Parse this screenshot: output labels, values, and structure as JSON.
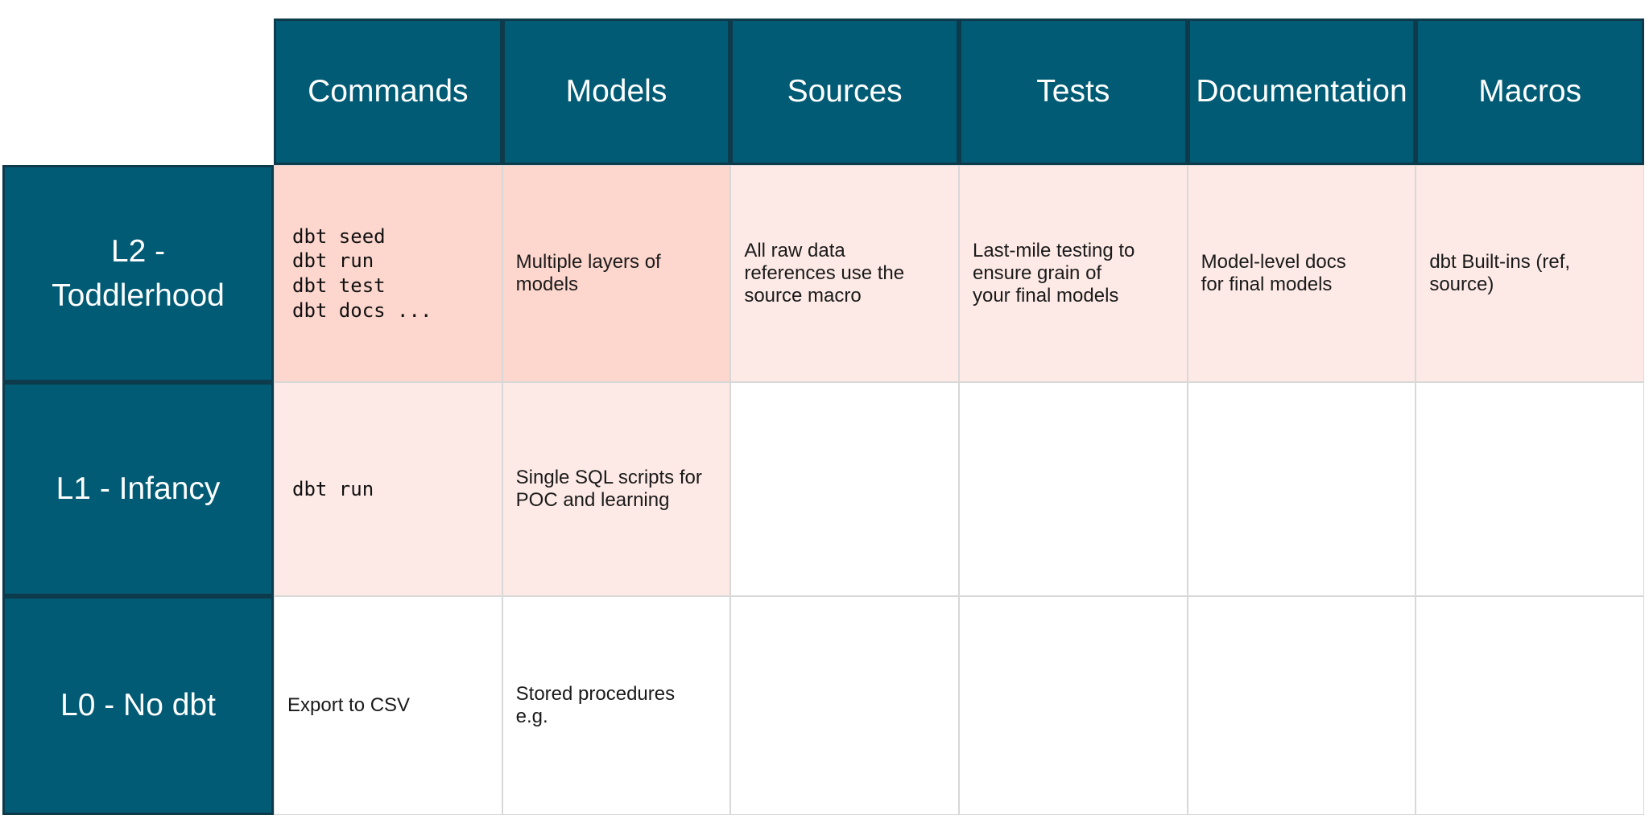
{
  "colors": {
    "teal": "#015B74",
    "navy": "#0D3B4B",
    "pinkdark": "#FDD6CD",
    "pinklight": "#FDEAE6",
    "grid": "#D8D8D8",
    "textdark": "#1A1A1A",
    "headertext": "#FFFFFF"
  },
  "table": {
    "columns": [
      "Commands",
      "Models",
      "Sources",
      "Tests",
      "Documentation",
      "Macros"
    ],
    "rows": [
      {
        "label": "L2 - Toddlerhood",
        "label_lines": [
          "L2 -",
          "Toddlerhood"
        ],
        "cells": [
          {
            "style": "mono",
            "highlight": "strong",
            "lines": [
              "dbt seed",
              "dbt run",
              "dbt test",
              "dbt docs ..."
            ]
          },
          {
            "style": "text",
            "highlight": "strong",
            "lines": [
              "Multiple layers of",
              "models"
            ]
          },
          {
            "style": "text",
            "highlight": "light",
            "lines": [
              "All raw data",
              "references use the",
              "source macro"
            ]
          },
          {
            "style": "text",
            "highlight": "light",
            "lines": [
              "Last-mile testing to",
              "ensure grain of",
              "your final models"
            ]
          },
          {
            "style": "text",
            "highlight": "light",
            "lines": [
              "Model-level docs",
              "for final models"
            ]
          },
          {
            "style": "text",
            "highlight": "light",
            "lines": [
              "dbt Built-ins (ref,",
              "source)"
            ]
          }
        ]
      },
      {
        "label": "L1 - Infancy",
        "label_lines": [
          "L1 - Infancy"
        ],
        "cells": [
          {
            "style": "mono",
            "highlight": "light",
            "lines": [
              "dbt run"
            ]
          },
          {
            "style": "text",
            "highlight": "light",
            "lines": [
              "Single SQL scripts for",
              "POC and learning"
            ]
          },
          {
            "style": "text",
            "highlight": "none",
            "lines": []
          },
          {
            "style": "text",
            "highlight": "none",
            "lines": []
          },
          {
            "style": "text",
            "highlight": "none",
            "lines": []
          },
          {
            "style": "text",
            "highlight": "none",
            "lines": []
          }
        ]
      },
      {
        "label": "L0 - No dbt",
        "label_lines": [
          "L0 - No dbt"
        ],
        "cells": [
          {
            "style": "text",
            "highlight": "none",
            "lines": [
              "Export to CSV"
            ]
          },
          {
            "style": "text",
            "highlight": "none",
            "lines": [
              "Stored procedures",
              "e.g."
            ]
          },
          {
            "style": "text",
            "highlight": "none",
            "lines": []
          },
          {
            "style": "text",
            "highlight": "none",
            "lines": []
          },
          {
            "style": "text",
            "highlight": "none",
            "lines": []
          },
          {
            "style": "text",
            "highlight": "none",
            "lines": []
          }
        ]
      }
    ]
  }
}
